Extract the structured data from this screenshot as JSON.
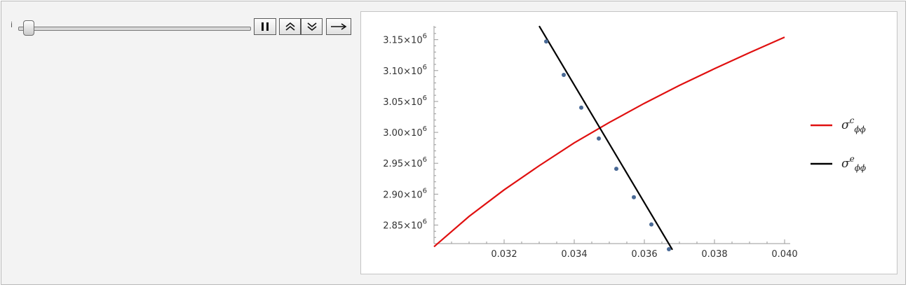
{
  "controls": {
    "slider_label": "i",
    "slider_value": 0.04,
    "buttons": [
      "pause-icon",
      "faster-icon",
      "slower-icon",
      "direction-icon"
    ]
  },
  "chart_data": {
    "type": "line",
    "title": "",
    "xlabel": "",
    "ylabel": "",
    "xlim": [
      0.03,
      0.04
    ],
    "ylim": [
      2820000.0,
      3170000.0
    ],
    "x_ticks": [
      "0.032",
      "0.034",
      "0.036",
      "0.038",
      "0.040"
    ],
    "x_tick_values": [
      0.032,
      0.034,
      0.036,
      0.038,
      0.04
    ],
    "y_ticks": [
      {
        "mantissa": "2.85",
        "exp": "6",
        "value": 2850000
      },
      {
        "mantissa": "2.90",
        "exp": "6",
        "value": 2900000
      },
      {
        "mantissa": "2.95",
        "exp": "6",
        "value": 2950000
      },
      {
        "mantissa": "3.00",
        "exp": "6",
        "value": 3000000
      },
      {
        "mantissa": "3.05",
        "exp": "6",
        "value": 3050000
      },
      {
        "mantissa": "3.10",
        "exp": "6",
        "value": 3100000
      },
      {
        "mantissa": "3.15",
        "exp": "6",
        "value": 3150000
      }
    ],
    "series": [
      {
        "name": "σcϕϕ",
        "legend_base": "σ",
        "legend_sup": "c",
        "legend_sub": "ϕϕ",
        "color": "#e01010",
        "x": [
          0.03,
          0.031,
          0.032,
          0.033,
          0.034,
          0.035,
          0.036,
          0.037,
          0.038,
          0.039,
          0.04
        ],
        "y": [
          2815000,
          2864000,
          2907000,
          2946000,
          2983000,
          3016000,
          3047000,
          3076000,
          3103000,
          3129000,
          3154000
        ]
      },
      {
        "name": "σeϕϕ",
        "legend_base": "σ",
        "legend_sup": "e",
        "legend_sub": "ϕϕ",
        "color": "#000000",
        "x": [
          0.033,
          0.0368
        ],
        "y": [
          3172000,
          2810000
        ],
        "markers_x": [
          0.0332,
          0.0337,
          0.0342,
          0.0347,
          0.0352,
          0.0357,
          0.0362,
          0.0367
        ],
        "markers_y": [
          3147000,
          3093000,
          3040000,
          2990000,
          2941000,
          2895000,
          2851000,
          2811000
        ],
        "marker_color": "#4a6a96"
      }
    ],
    "grid": false,
    "legend": "right"
  }
}
